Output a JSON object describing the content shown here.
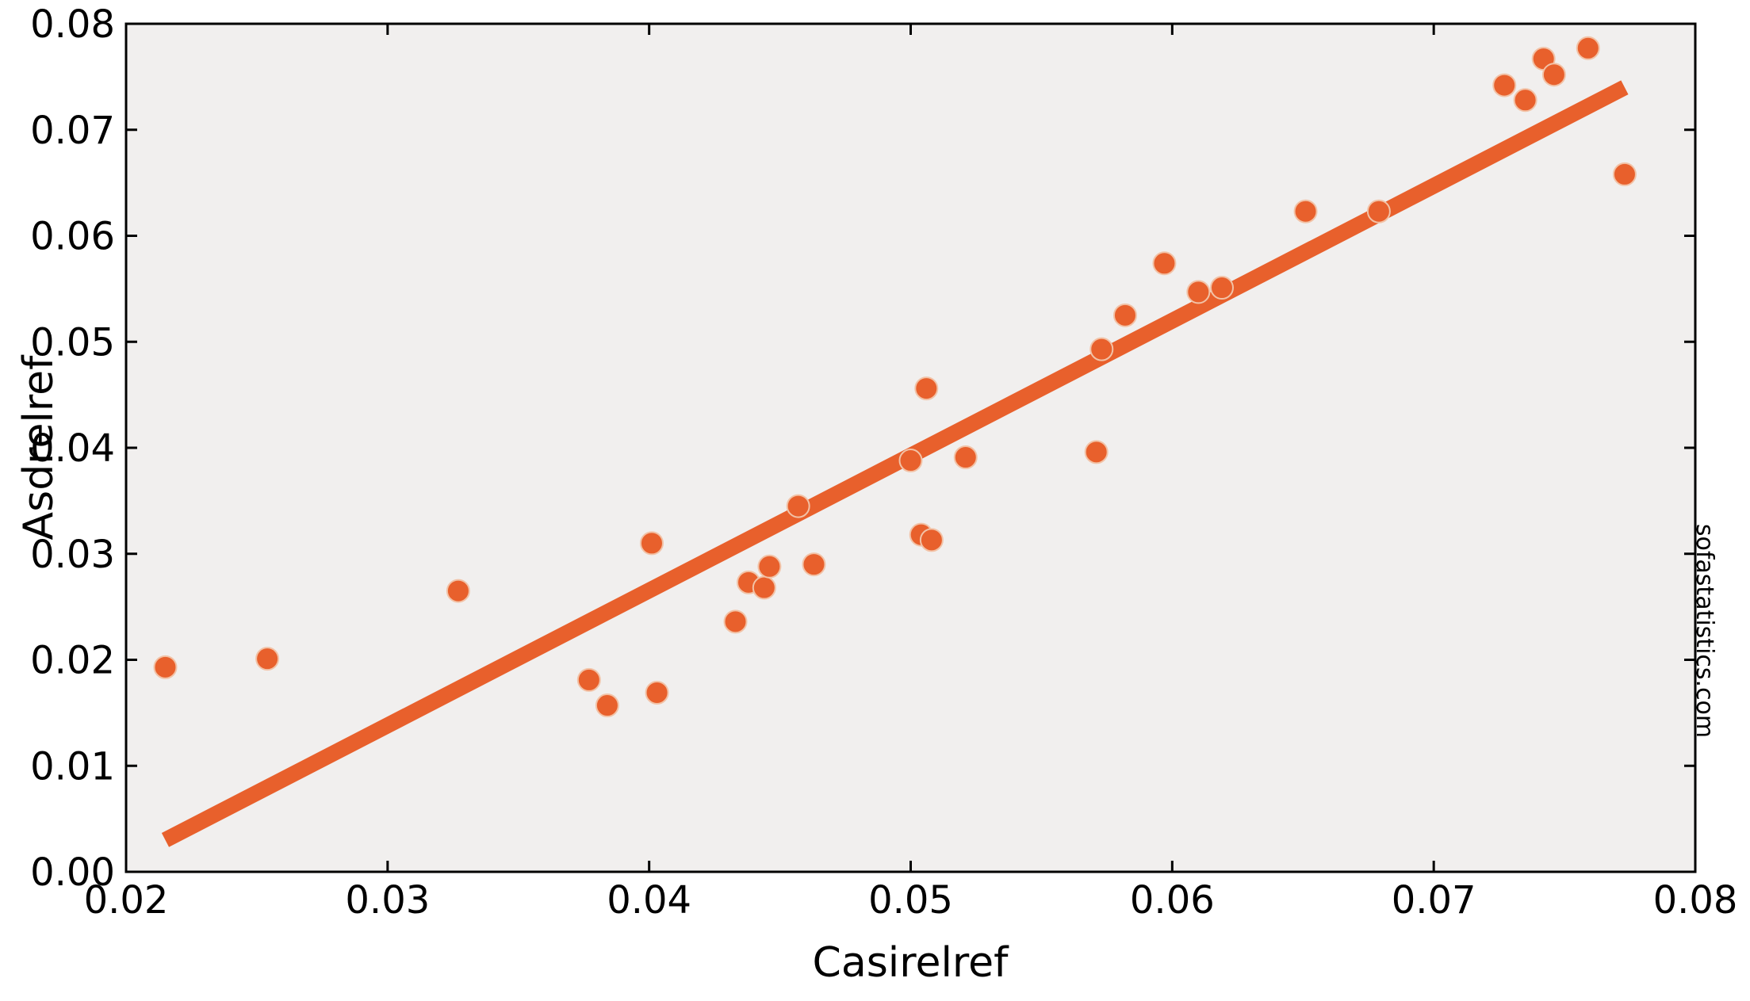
{
  "chart_data": {
    "type": "scatter",
    "xlabel": "Casirelref",
    "ylabel": "Asdrelref",
    "watermark": "sofastatistics.com",
    "xlim": [
      0.02,
      0.08
    ],
    "ylim": [
      0.0,
      0.08
    ],
    "xticks": [
      "0.02",
      "0.03",
      "0.04",
      "0.05",
      "0.06",
      "0.07",
      "0.08"
    ],
    "yticks": [
      "0.00",
      "0.01",
      "0.02",
      "0.03",
      "0.04",
      "0.05",
      "0.06",
      "0.07",
      "0.08"
    ],
    "grid": false,
    "colors": {
      "plot_background": "#f1efee",
      "points": "#e8602c",
      "trend_line": "#e8602c",
      "point_edge": "#f2c2a6"
    },
    "points": [
      [
        0.0215,
        0.0193
      ],
      [
        0.0254,
        0.0201
      ],
      [
        0.0327,
        0.0265
      ],
      [
        0.0377,
        0.0181
      ],
      [
        0.0384,
        0.0157
      ],
      [
        0.0401,
        0.031
      ],
      [
        0.0403,
        0.0169
      ],
      [
        0.0433,
        0.0236
      ],
      [
        0.0438,
        0.0273
      ],
      [
        0.0444,
        0.0268
      ],
      [
        0.0446,
        0.0288
      ],
      [
        0.0457,
        0.0345
      ],
      [
        0.0463,
        0.029
      ],
      [
        0.05,
        0.0388
      ],
      [
        0.0504,
        0.0318
      ],
      [
        0.0506,
        0.0456
      ],
      [
        0.0508,
        0.0313
      ],
      [
        0.0521,
        0.0391
      ],
      [
        0.0571,
        0.0396
      ],
      [
        0.0573,
        0.0493
      ],
      [
        0.0582,
        0.0525
      ],
      [
        0.0597,
        0.0574
      ],
      [
        0.061,
        0.0547
      ],
      [
        0.0619,
        0.0551
      ],
      [
        0.0651,
        0.0623
      ],
      [
        0.0679,
        0.0623
      ],
      [
        0.0727,
        0.0742
      ],
      [
        0.0735,
        0.0728
      ],
      [
        0.0742,
        0.0767
      ],
      [
        0.0746,
        0.0752
      ],
      [
        0.0759,
        0.0777
      ],
      [
        0.0773,
        0.0658
      ]
    ],
    "trend_line": {
      "x": [
        0.0215,
        0.0773
      ],
      "y": [
        0.003,
        0.074
      ]
    }
  }
}
